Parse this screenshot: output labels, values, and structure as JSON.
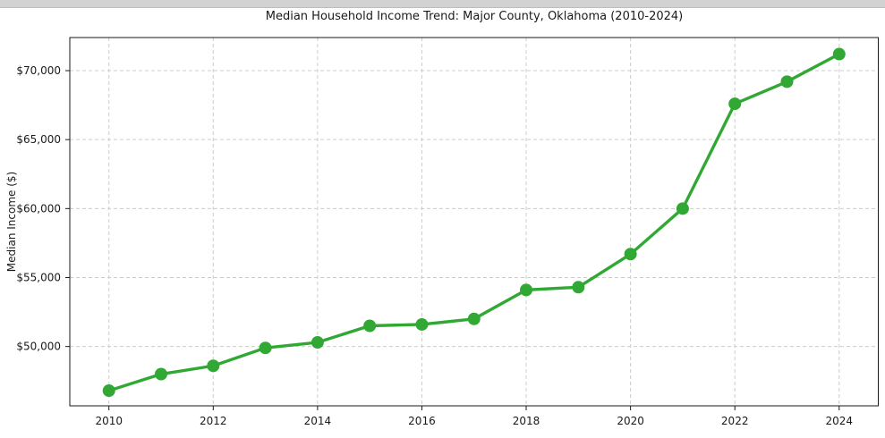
{
  "chart_data": {
    "type": "line",
    "title": "Median Household Income Trend: Major County, Oklahoma (2010-2024)",
    "xlabel": "",
    "ylabel": "Median Income ($)",
    "x": [
      2010,
      2011,
      2012,
      2013,
      2014,
      2015,
      2016,
      2017,
      2018,
      2019,
      2020,
      2021,
      2022,
      2023,
      2024
    ],
    "series": [
      {
        "name": "Median household income",
        "values": [
          46800,
          48000,
          48600,
          49900,
          50300,
          51500,
          51600,
          52000,
          54100,
          54300,
          56700,
          60000,
          67600,
          69200,
          71200
        ]
      }
    ],
    "xticks": [
      2010,
      2012,
      2014,
      2016,
      2018,
      2020,
      2022,
      2024
    ],
    "xtick_labels": [
      "2010",
      "2012",
      "2014",
      "2016",
      "2018",
      "2020",
      "2022",
      "2024"
    ],
    "yticks": [
      50000,
      55000,
      60000,
      65000,
      70000
    ],
    "ytick_labels": [
      "$50,000",
      "$55,000",
      "$60,000",
      "$65,000",
      "$70,000"
    ],
    "xlim": [
      2009.25,
      2024.75
    ],
    "ylim": [
      45700,
      72400
    ],
    "grid": true,
    "grid_style": "dashed",
    "legend_position": "none",
    "line_color": "#31a834",
    "grid_color": "#cccccc",
    "spine_color": "#1a1a1a",
    "text_color": "#1a1a1a"
  }
}
